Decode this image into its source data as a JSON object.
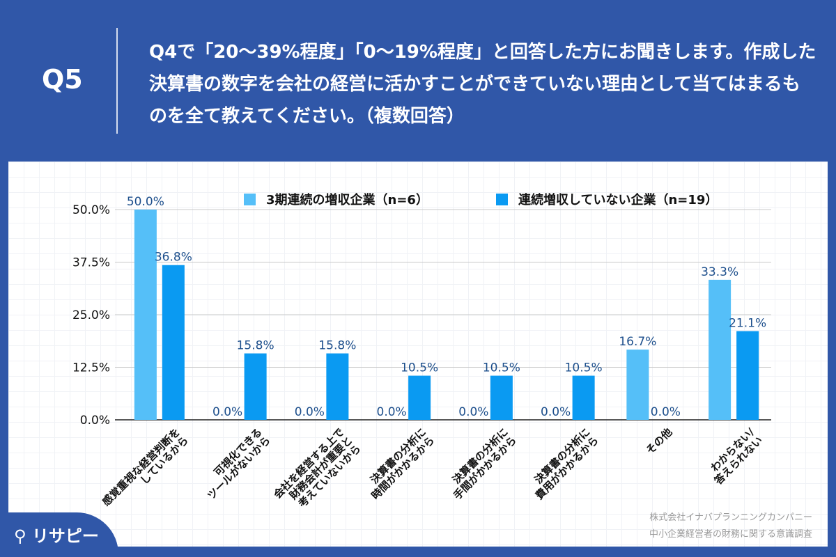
{
  "header": {
    "qnum": "Q5",
    "question": "Q4で「20〜39%程度」「0〜19%程度」と回答した方にお聞きします。作成した決算書の数字を会社の経営に活かすことができていない理由として当てはまるものを全て教えてください。（複数回答）"
  },
  "footer": {
    "logo_text": "リサピー",
    "source_line1": "株式会社イナバプランニングカンパニー",
    "source_line2": "中小企業経営者の財務に関する意識調査"
  },
  "chart_data": {
    "type": "bar",
    "categories": [
      "感覚重視な経営判断を\nしているから",
      "可視化できる\nツールがないから",
      "会社を経営する上で\n財務会計が重要と\n考えていないから",
      "決算書の分析に\n時間がかかるから",
      "決算書の分析に\n手間がかかるから",
      "決算書の分析に\n費用がかかるから",
      "その他",
      "わからない/\n答えられない"
    ],
    "series": [
      {
        "name": "3期連続の増収企業（n=6）",
        "values": [
          50.0,
          0.0,
          0.0,
          0.0,
          0.0,
          0.0,
          16.7,
          33.3
        ],
        "color": "#55bff8"
      },
      {
        "name": "連続増収していない企業（n=19）",
        "values": [
          36.8,
          15.8,
          15.8,
          10.5,
          10.5,
          10.5,
          0.0,
          21.1
        ],
        "color": "#0a9af2"
      }
    ],
    "yticks": [
      "0.0%",
      "12.5%",
      "25.0%",
      "37.5%",
      "50.0%"
    ],
    "ylim": [
      0,
      50
    ],
    "grid": true,
    "legend": "top",
    "label_color": "#1d4f8c"
  }
}
